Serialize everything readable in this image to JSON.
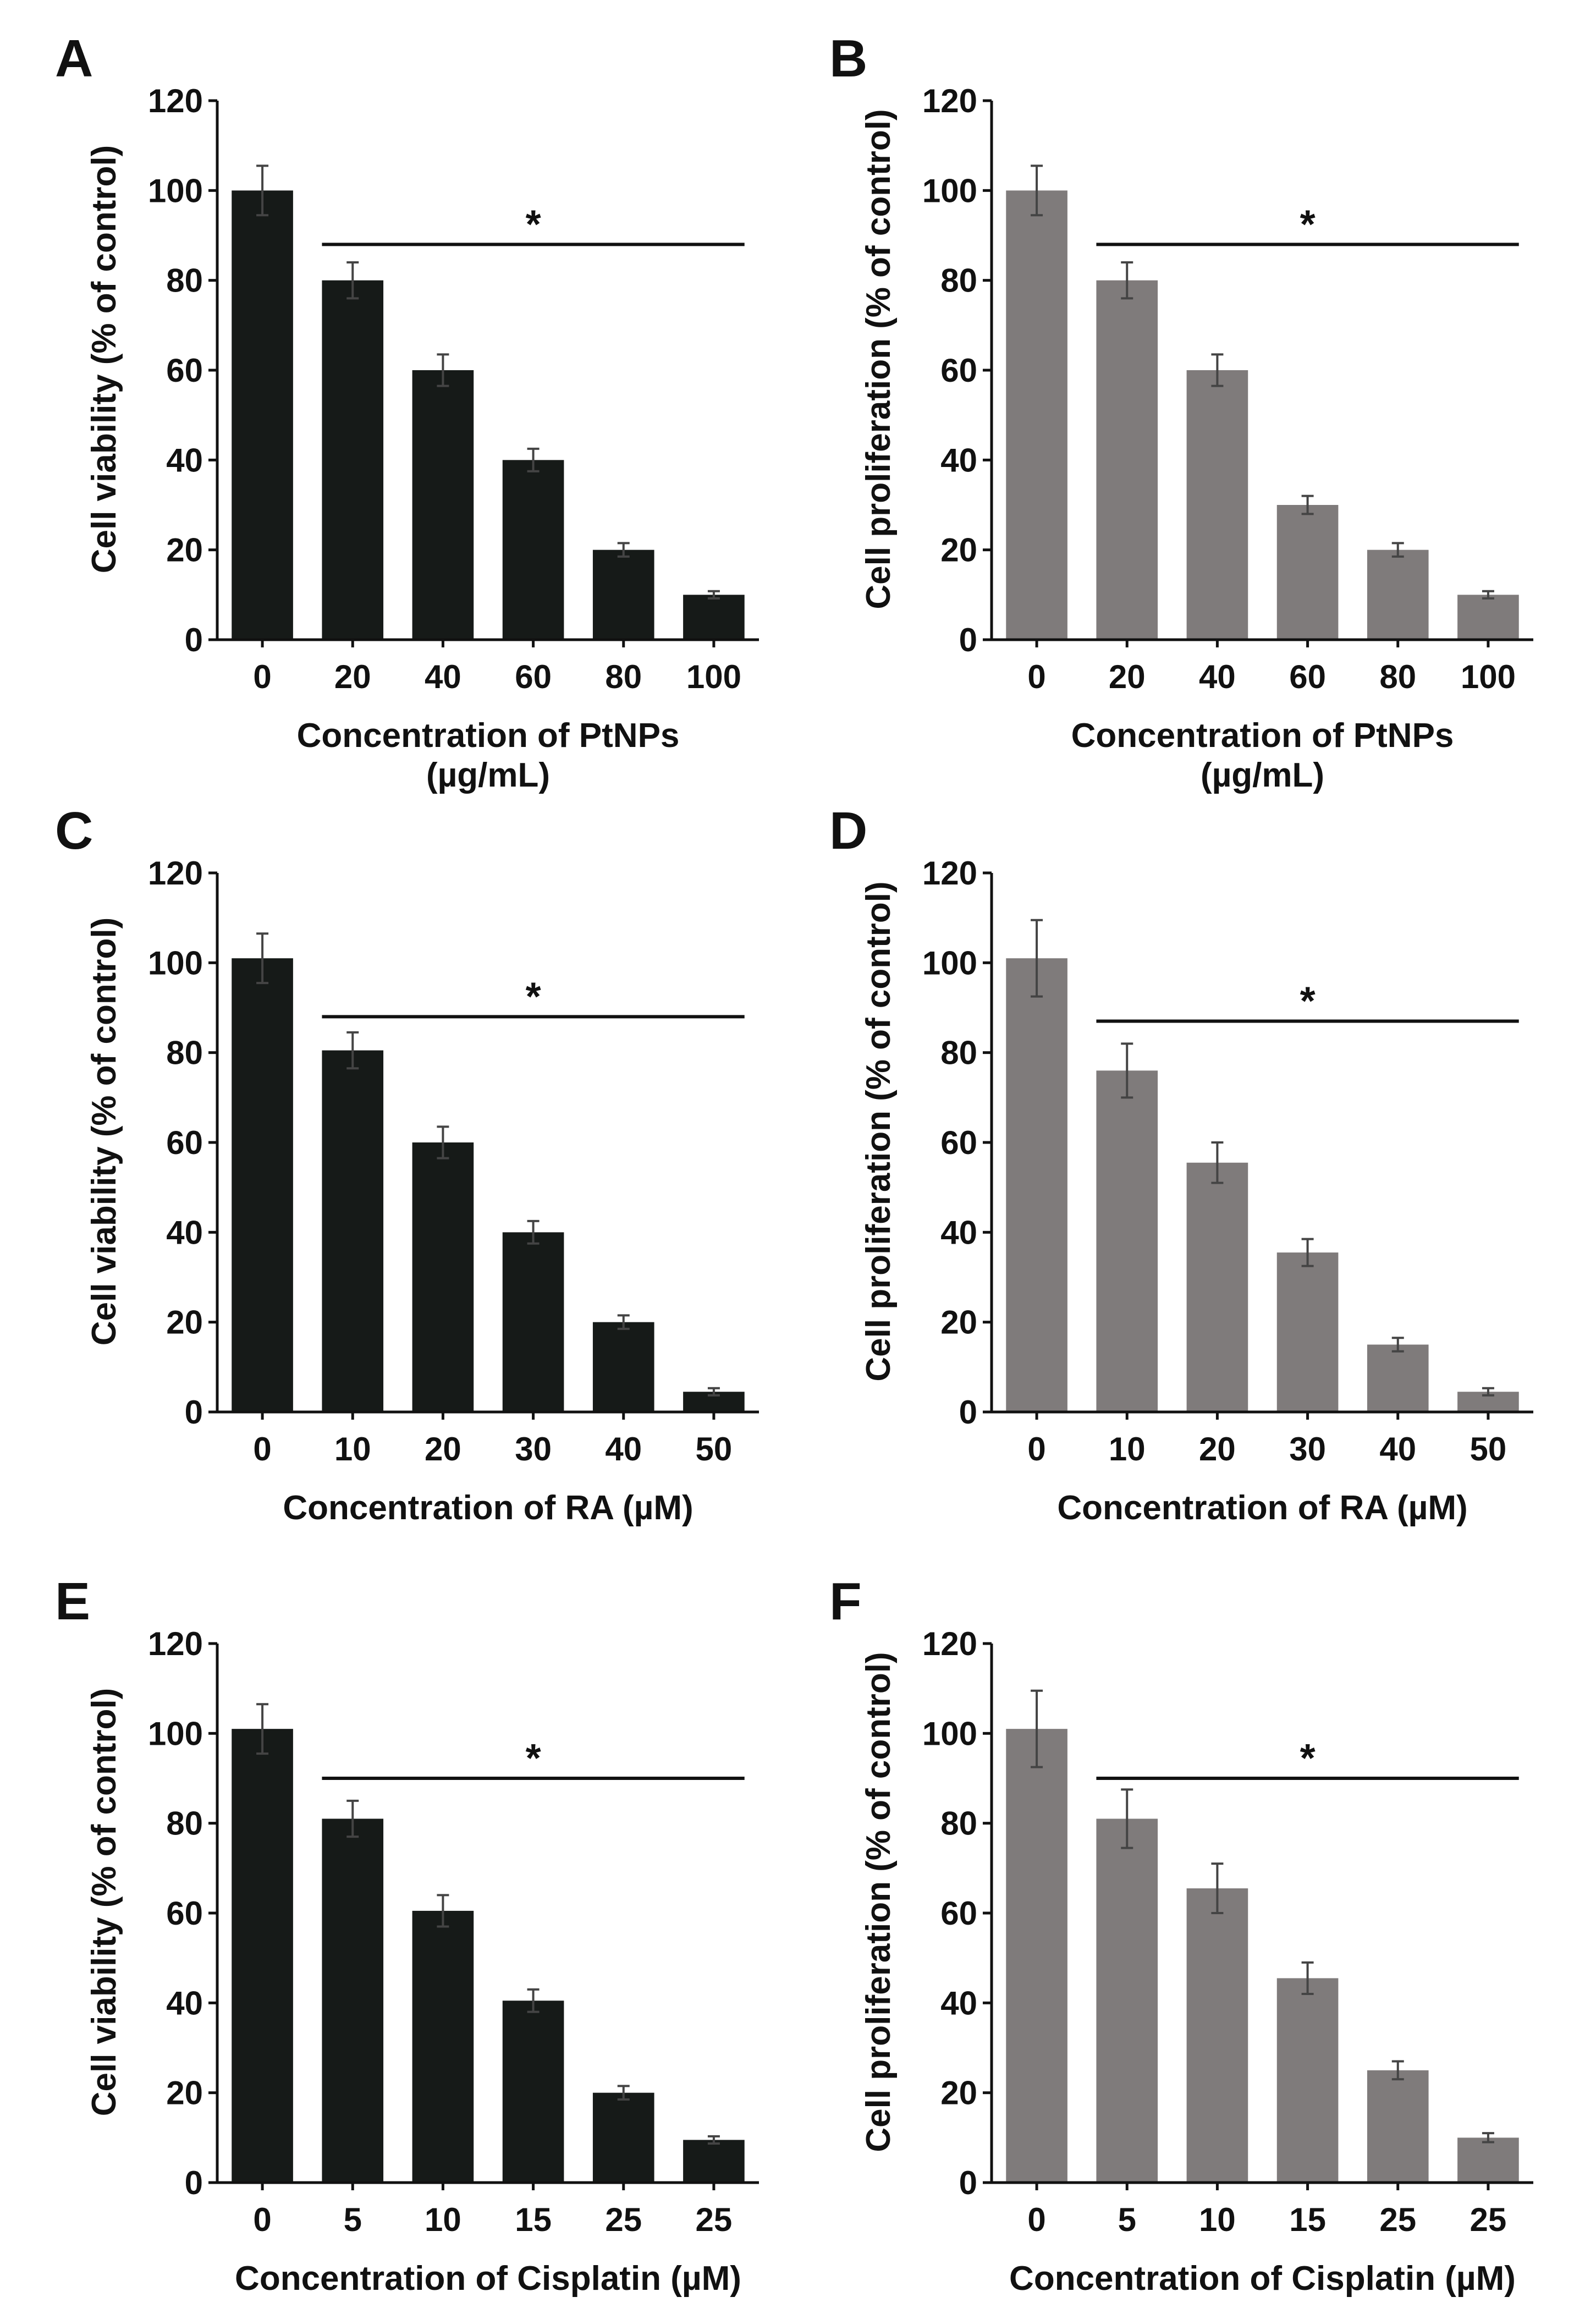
{
  "figure": {
    "colors": {
      "dark": "#161a18",
      "gray": "#7f7b7b",
      "axis": "#111111",
      "error": "#444444"
    }
  },
  "chart_data": [
    {
      "panel": "A",
      "type": "bar",
      "color": "dark",
      "categories": [
        "0",
        "20",
        "40",
        "60",
        "80",
        "100"
      ],
      "values": [
        100,
        80,
        60,
        40,
        20,
        10
      ],
      "errors": [
        5.5,
        4,
        3.5,
        2.5,
        1.5,
        0.8
      ],
      "ylabel": "Cell viability (% of control)",
      "xlabel": [
        "Concentration of PtNPs",
        "(µg/mL)"
      ],
      "ylim": [
        0,
        120
      ],
      "yticks": [
        0,
        20,
        40,
        60,
        80,
        100,
        120
      ],
      "significance": {
        "label": "*",
        "from_index": 1,
        "to_index": 5,
        "y": 88
      }
    },
    {
      "panel": "B",
      "type": "bar",
      "color": "gray",
      "categories": [
        "0",
        "20",
        "40",
        "60",
        "80",
        "100"
      ],
      "values": [
        100,
        80,
        60,
        30,
        20,
        10
      ],
      "errors": [
        5.5,
        4,
        3.5,
        2,
        1.5,
        0.8
      ],
      "ylabel": "Cell proliferation (% of control)",
      "xlabel": [
        "Concentration of PtNPs",
        "(µg/mL)"
      ],
      "ylim": [
        0,
        120
      ],
      "yticks": [
        0,
        20,
        40,
        60,
        80,
        100,
        120
      ],
      "significance": {
        "label": "*",
        "from_index": 1,
        "to_index": 5,
        "y": 88
      }
    },
    {
      "panel": "C",
      "type": "bar",
      "color": "dark",
      "categories": [
        "0",
        "10",
        "20",
        "30",
        "40",
        "50"
      ],
      "values": [
        101,
        80.5,
        60,
        40,
        20,
        4.5
      ],
      "errors": [
        5.5,
        4,
        3.5,
        2.5,
        1.5,
        0.8
      ],
      "ylabel": "Cell viability (% of control)",
      "xlabel": [
        "Concentration of RA (µM)"
      ],
      "ylim": [
        0,
        120
      ],
      "yticks": [
        0,
        20,
        40,
        60,
        80,
        100,
        120
      ],
      "significance": {
        "label": "*",
        "from_index": 1,
        "to_index": 5,
        "y": 88
      }
    },
    {
      "panel": "D",
      "type": "bar",
      "color": "gray",
      "categories": [
        "0",
        "10",
        "20",
        "30",
        "40",
        "50"
      ],
      "values": [
        101,
        76,
        55.5,
        35.5,
        15,
        4.5
      ],
      "errors": [
        8.5,
        6,
        4.5,
        3,
        1.5,
        0.8
      ],
      "ylabel": "Cell proliferation (% of control)",
      "xlabel": [
        "Concentration of RA (µM)"
      ],
      "ylim": [
        0,
        120
      ],
      "yticks": [
        0,
        20,
        40,
        60,
        80,
        100,
        120
      ],
      "significance": {
        "label": "*",
        "from_index": 1,
        "to_index": 5,
        "y": 87
      }
    },
    {
      "panel": "E",
      "type": "bar",
      "color": "dark",
      "categories": [
        "0",
        "5",
        "10",
        "15",
        "25",
        "25"
      ],
      "values": [
        101,
        81,
        60.5,
        40.5,
        20,
        9.5
      ],
      "errors": [
        5.5,
        4,
        3.5,
        2.5,
        1.5,
        0.8
      ],
      "ylabel": "Cell viability (% of control)",
      "xlabel": [
        "Concentration of Cisplatin (µM)"
      ],
      "ylim": [
        0,
        120
      ],
      "yticks": [
        0,
        20,
        40,
        60,
        80,
        100,
        120
      ],
      "significance": {
        "label": "*",
        "from_index": 1,
        "to_index": 5,
        "y": 90
      }
    },
    {
      "panel": "F",
      "type": "bar",
      "color": "gray",
      "categories": [
        "0",
        "5",
        "10",
        "15",
        "25",
        "25"
      ],
      "values": [
        101,
        81,
        65.5,
        45.5,
        25,
        10
      ],
      "errors": [
        8.5,
        6.5,
        5.5,
        3.5,
        2,
        1
      ],
      "ylabel": "Cell proliferation (% of control)",
      "xlabel": [
        "Concentration of Cisplatin (µM)"
      ],
      "ylim": [
        0,
        120
      ],
      "yticks": [
        0,
        20,
        40,
        60,
        80,
        100,
        120
      ],
      "significance": {
        "label": "*",
        "from_index": 1,
        "to_index": 5,
        "y": 90
      }
    }
  ]
}
